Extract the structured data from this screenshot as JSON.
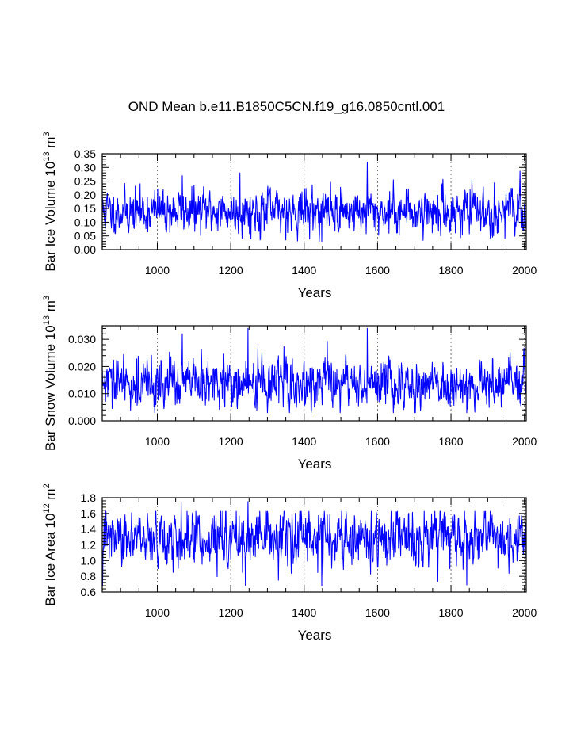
{
  "title": "OND Mean b.e11.B1850C5CN.f19_g16.0850cntl.001",
  "series_color": "#0000ff",
  "chart_data": [
    {
      "type": "line",
      "name": "ice-volume",
      "title": "",
      "xlabel": "Years",
      "ylabel": "Bar Ice Volume 10",
      "ylabel_sup": "13",
      "ylabel_unit": " m",
      "ylabel_unit_sup": "3",
      "xlim": [
        850,
        2005
      ],
      "ylim": [
        0.0,
        0.35
      ],
      "xticks": [
        1000,
        1200,
        1400,
        1600,
        1800,
        2000
      ],
      "xtick_labels": [
        "1000",
        "1200",
        "1400",
        "1600",
        "1800",
        "2000"
      ],
      "yticks": [
        0.0,
        0.05,
        0.1,
        0.15,
        0.2,
        0.25,
        0.3,
        0.35
      ],
      "ytick_labels": [
        "0.00",
        "0.05",
        "0.10",
        "0.15",
        "0.20",
        "0.25",
        "0.30",
        "0.35"
      ],
      "vgrid": [
        1000,
        1200,
        1400,
        1600,
        1800,
        2000
      ],
      "series": [
        {
          "name": "OND mean",
          "x_start": 850,
          "x_end": 2005,
          "mean": 0.14,
          "std": 0.04,
          "min": 0.03,
          "max": 0.32,
          "peaks": [
            [
              1572,
              0.32
            ],
            [
              1225,
              0.28
            ],
            [
              1068,
              0.27
            ],
            [
              1448,
              0.03
            ]
          ],
          "seed": 11
        }
      ]
    },
    {
      "type": "line",
      "name": "snow-volume",
      "title": "",
      "xlabel": "Years",
      "ylabel": "Bar Snow Volume 10",
      "ylabel_sup": "13",
      "ylabel_unit": " m",
      "ylabel_unit_sup": "3",
      "xlim": [
        850,
        2005
      ],
      "ylim": [
        0.0,
        0.035
      ],
      "xticks": [
        1000,
        1200,
        1400,
        1600,
        1800,
        2000
      ],
      "xtick_labels": [
        "1000",
        "1200",
        "1400",
        "1600",
        "1800",
        "2000"
      ],
      "yticks": [
        0.0,
        0.01,
        0.02,
        0.03
      ],
      "ytick_labels": [
        "0.000",
        "0.010",
        "0.020",
        "0.030"
      ],
      "vgrid": [
        1000,
        1200,
        1400,
        1600,
        1800,
        2000
      ],
      "series": [
        {
          "name": "OND mean",
          "x_start": 850,
          "x_end": 2005,
          "mean": 0.0135,
          "std": 0.0045,
          "min": 0.003,
          "max": 0.034,
          "peaks": [
            [
              1247,
              0.034
            ],
            [
              1572,
              0.034
            ],
            [
              1068,
              0.032
            ],
            [
              1843,
              0.003
            ]
          ],
          "seed": 29
        }
      ]
    },
    {
      "type": "line",
      "name": "ice-area",
      "title": "",
      "xlabel": "Years",
      "ylabel": "Bar Ice Area 10",
      "ylabel_sup": "12",
      "ylabel_unit": " m",
      "ylabel_unit_sup": "2",
      "xlim": [
        850,
        2005
      ],
      "ylim": [
        0.6,
        1.8
      ],
      "xticks": [
        1000,
        1200,
        1400,
        1600,
        1800,
        2000
      ],
      "xtick_labels": [
        "1000",
        "1200",
        "1400",
        "1600",
        "1800",
        "2000"
      ],
      "yticks": [
        0.6,
        0.8,
        1.0,
        1.2,
        1.4,
        1.6,
        1.8
      ],
      "ytick_labels": [
        "0.6",
        "0.8",
        "1.0",
        "1.2",
        "1.4",
        "1.6",
        "1.8"
      ],
      "vgrid": [
        1000,
        1200,
        1400,
        1600,
        1800,
        2000
      ],
      "series": [
        {
          "name": "OND mean",
          "x_start": 850,
          "x_end": 2005,
          "mean": 1.27,
          "std": 0.17,
          "min": 0.68,
          "max": 1.75,
          "peaks": [
            [
              1247,
              1.75
            ],
            [
              1065,
              1.74
            ],
            [
              1448,
              0.68
            ],
            [
              1843,
              0.69
            ]
          ],
          "seed": 47
        }
      ]
    }
  ]
}
